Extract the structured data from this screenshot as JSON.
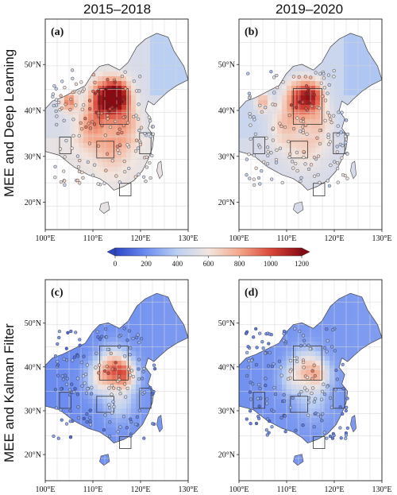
{
  "columns": [
    "2015–2018",
    "2019–2020"
  ],
  "rows": [
    "MEE and Deep Learning",
    "MEE and Kalman Filter"
  ],
  "panels": [
    {
      "label": "(a)",
      "method": "deep",
      "intensity": 1.0
    },
    {
      "label": "(b)",
      "method": "deep",
      "intensity": 0.78
    },
    {
      "label": "(c)",
      "method": "kalman",
      "intensity": 1.0
    },
    {
      "label": "(d)",
      "method": "kalman",
      "intensity": 0.7
    }
  ],
  "x_ticks": [
    "100°E",
    "110°E",
    "120°E",
    "130°E"
  ],
  "y_ticks": [
    "20°N",
    "30°N",
    "40°N",
    "50°N"
  ],
  "colorbar": {
    "ticks": [
      "0",
      "200",
      "400",
      "600",
      "800",
      "1000",
      "1200"
    ],
    "min": 0,
    "max": 1200,
    "colors": [
      "#2c46c6",
      "#6d8df0",
      "#bcd0f2",
      "#f2e6e0",
      "#f4a78a",
      "#d9483a",
      "#8b0a12"
    ]
  }
}
